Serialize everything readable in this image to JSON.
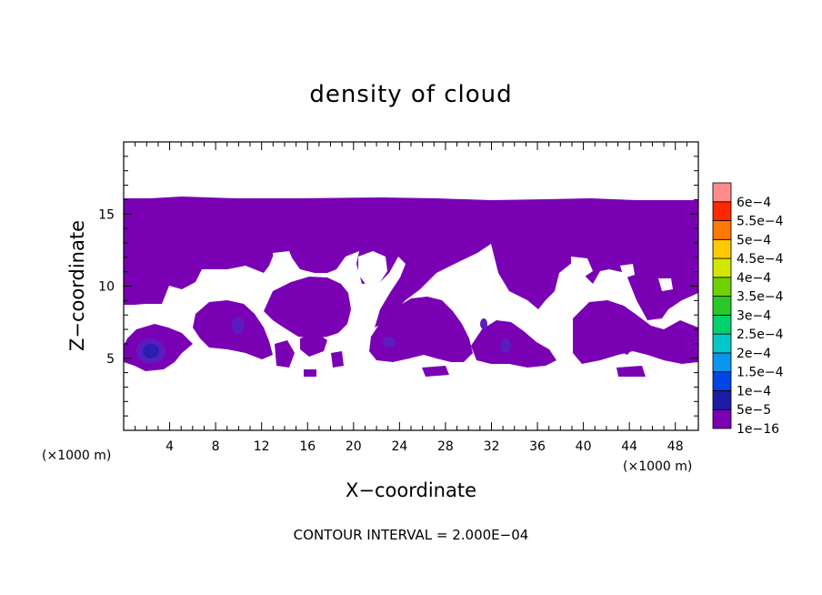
{
  "chart_data": {
    "type": "heatmap",
    "title": "density of cloud",
    "xlabel": "X−coordinate",
    "ylabel": "Z−coordinate",
    "x_unit": "(×1000 m)",
    "z_unit": "(×1000 m)",
    "footer": "CONTOUR INTERVAL = 2.000E−04",
    "xlim": [
      0,
      50
    ],
    "ylim": [
      0,
      20
    ],
    "x_ticks": [
      "4",
      "8",
      "12",
      "16",
      "20",
      "24",
      "28",
      "32",
      "36",
      "40",
      "44",
      "48"
    ],
    "y_ticks": [
      "5",
      "10",
      "15"
    ],
    "colorbar": {
      "labels": [
        "1e−16",
        "5e−5",
        "1e−4",
        "1.5e−4",
        "2e−4",
        "2.5e−4",
        "3e−4",
        "3.5e−4",
        "4e−4",
        "4.5e−4",
        "5e−4",
        "5.5e−4",
        "6e−4"
      ],
      "colors": [
        "#7a00b4",
        "#1c1ca8",
        "#0046e6",
        "#0a96f0",
        "#00c8c8",
        "#00d26e",
        "#28c828",
        "#6ed200",
        "#d2e600",
        "#ffc800",
        "#ff7800",
        "#ff2800",
        "#ff8c8c"
      ]
    },
    "field": {
      "fill_color": "#7a00b4",
      "dense_color": "#2a1fb0",
      "mid_color": "#5a1cc0",
      "description_levels": [
        "1e−16",
        "5e−5"
      ]
    }
  }
}
